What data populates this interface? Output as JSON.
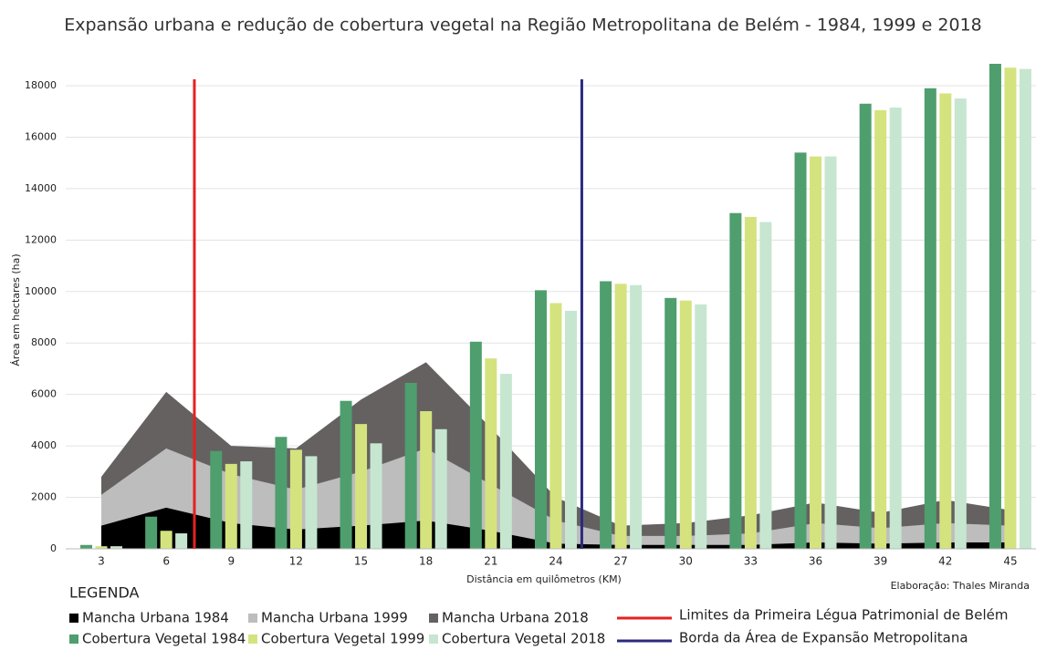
{
  "chart_data": {
    "type": "bar",
    "title": "Expansão urbana e redução de cobertura vegetal na Região Metropolitana de Belém - 1984, 1999 e 2018",
    "x_label": "Distância em quilômetros (KM)",
    "y_label": "Área em hectares (ha)",
    "legend_title": "LEGENDA",
    "credit": "Elaboração: Thales Miranda",
    "categories": [
      "3",
      "6",
      "9",
      "12",
      "15",
      "18",
      "21",
      "24",
      "27",
      "30",
      "33",
      "36",
      "39",
      "42",
      "45"
    ],
    "ylim": [
      0,
      19000
    ],
    "yticks": [
      0,
      2000,
      4000,
      6000,
      8000,
      10000,
      12000,
      14000,
      16000,
      18000
    ],
    "grid": true,
    "legend_position": "bottom",
    "series": [
      {
        "name": "Mancha Urbana 1984",
        "type": "area",
        "color": "#000000",
        "values": [
          900,
          1600,
          1000,
          750,
          900,
          1100,
          700,
          200,
          150,
          150,
          150,
          250,
          200,
          250,
          250
        ]
      },
      {
        "name": "Mancha Urbana 1999",
        "type": "area",
        "color": "#bdbdbd",
        "values": [
          2100,
          3900,
          2900,
          2300,
          3000,
          3900,
          2500,
          1100,
          500,
          500,
          600,
          1000,
          800,
          1000,
          900
        ]
      },
      {
        "name": "Mancha Urbana 2018",
        "type": "area",
        "color": "#656161",
        "values": [
          2800,
          6100,
          4000,
          3900,
          5800,
          7250,
          4700,
          2000,
          900,
          1000,
          1300,
          1800,
          1400,
          1900,
          1500
        ]
      },
      {
        "name": "Cobertura Vegetal 1984",
        "type": "bar",
        "color": "#4f9e6e",
        "values": [
          150,
          1250,
          3800,
          4350,
          5750,
          6450,
          8050,
          10050,
          10400,
          9750,
          13050,
          15400,
          17300,
          17900,
          18850
        ]
      },
      {
        "name": "Cobertura Vegetal 1999",
        "type": "bar",
        "color": "#d4e37e",
        "values": [
          100,
          700,
          3300,
          3850,
          4850,
          5350,
          7400,
          9550,
          10300,
          9650,
          12900,
          15250,
          17050,
          17700,
          18700
        ]
      },
      {
        "name": "Cobertura Vegetal 2018",
        "type": "bar",
        "color": "#c6e6d0",
        "values": [
          100,
          600,
          3400,
          3600,
          4100,
          4650,
          6800,
          9250,
          10250,
          9500,
          12700,
          15250,
          17150,
          17500,
          18650
        ]
      }
    ],
    "reference_lines": [
      {
        "name": "Limites da Primeira Légua Patrimonial de Belém",
        "color": "#e32222",
        "x": 7.3
      },
      {
        "name": "Borda da Área de Expansão Metropolitana",
        "color": "#2b2a7e",
        "x": 25.2
      }
    ]
  }
}
